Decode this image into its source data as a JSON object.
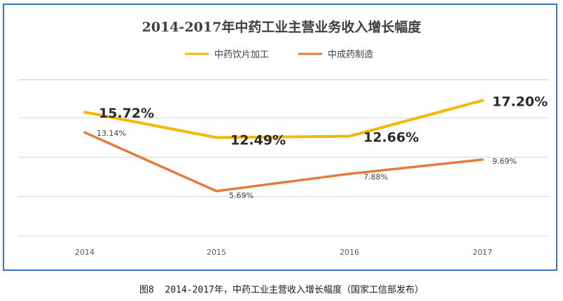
{
  "chart_data": {
    "type": "line",
    "title": "2014-2017年中药工业主营业务收入增长幅度",
    "categories": [
      "2014",
      "2015",
      "2016",
      "2017"
    ],
    "series": [
      {
        "name": "中药饮片加工",
        "values": [
          15.72,
          12.49,
          12.66,
          17.2
        ],
        "labels": [
          "15.72%",
          "12.49%",
          "12.66%",
          "17.20%"
        ],
        "color": "#f5b800"
      },
      {
        "name": "中成药制造",
        "values": [
          13.14,
          5.69,
          7.88,
          9.69
        ],
        "labels": [
          "13.14%",
          "5.69%",
          "7.88%",
          "9.69%"
        ],
        "color": "#e67a3a"
      }
    ],
    "ylim": [
      0,
      20
    ],
    "grid": true,
    "legend": "top-center",
    "xlabel": "",
    "ylabel": ""
  },
  "caption": "图8  2014-2017年，中药工业主营收入增长幅度（国家工信部发布）"
}
